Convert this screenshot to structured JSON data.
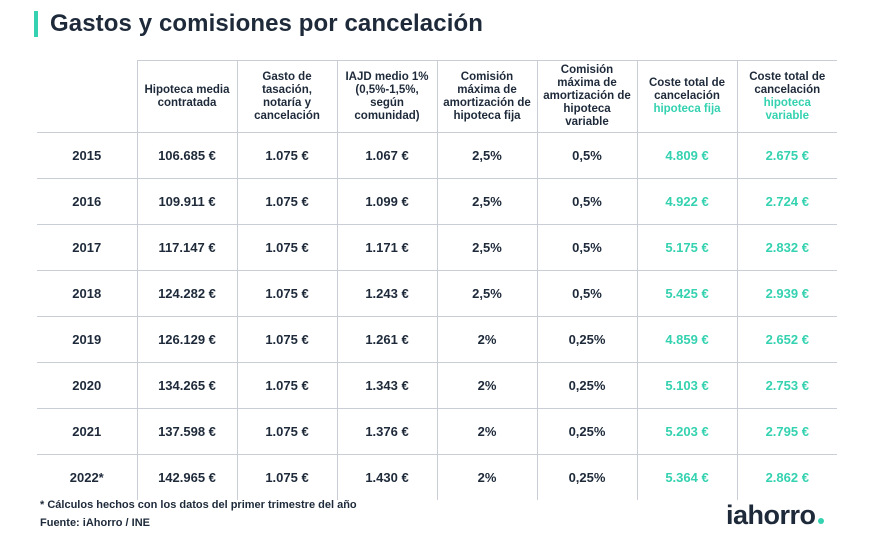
{
  "title": "Gastos y comisiones por cancelación",
  "accent_color": "#34d2b0",
  "text_color": "#1e2a3a",
  "columns": [
    {
      "plain": "Hipoteca media contratada",
      "teal": ""
    },
    {
      "plain": "Gasto de tasación, notaría y cancelación",
      "teal": ""
    },
    {
      "plain": "IAJD medio 1% (0,5%-1,5%, según comunidad)",
      "teal": ""
    },
    {
      "plain": "Comisión máxima de amortización de hipoteca fija",
      "teal": ""
    },
    {
      "plain": "Comisión máxima de amortización de hipoteca variable",
      "teal": ""
    },
    {
      "plain": "Coste total de cancelación",
      "teal": "hipoteca fija"
    },
    {
      "plain": "Coste total de cancelación",
      "teal": "hipoteca variable"
    }
  ],
  "rows": [
    {
      "year": "2015",
      "hipoteca": "106.685 €",
      "gasto": "1.075 €",
      "iajd": "1.067 €",
      "com_fija": "2,5%",
      "com_variable": "0,5%",
      "coste_fija": "4.809 €",
      "coste_variable": "2.675 €"
    },
    {
      "year": "2016",
      "hipoteca": "109.911 €",
      "gasto": "1.075 €",
      "iajd": "1.099 €",
      "com_fija": "2,5%",
      "com_variable": "0,5%",
      "coste_fija": "4.922 €",
      "coste_variable": "2.724 €"
    },
    {
      "year": "2017",
      "hipoteca": "117.147 €",
      "gasto": "1.075 €",
      "iajd": "1.171 €",
      "com_fija": "2,5%",
      "com_variable": "0,5%",
      "coste_fija": "5.175 €",
      "coste_variable": "2.832 €"
    },
    {
      "year": "2018",
      "hipoteca": "124.282 €",
      "gasto": "1.075 €",
      "iajd": "1.243 €",
      "com_fija": "2,5%",
      "com_variable": "0,5%",
      "coste_fija": "5.425 €",
      "coste_variable": "2.939 €"
    },
    {
      "year": "2019",
      "hipoteca": "126.129 €",
      "gasto": "1.075 €",
      "iajd": "1.261 €",
      "com_fija": "2%",
      "com_variable": "0,25%",
      "coste_fija": "4.859 €",
      "coste_variable": "2.652 €"
    },
    {
      "year": "2020",
      "hipoteca": "134.265 €",
      "gasto": "1.075 €",
      "iajd": "1.343 €",
      "com_fija": "2%",
      "com_variable": "0,25%",
      "coste_fija": "5.103 €",
      "coste_variable": "2.753 €"
    },
    {
      "year": "2021",
      "hipoteca": "137.598 €",
      "gasto": "1.075 €",
      "iajd": "1.376 €",
      "com_fija": "2%",
      "com_variable": "0,25%",
      "coste_fija": "5.203 €",
      "coste_variable": "2.795 €"
    },
    {
      "year": "2022*",
      "hipoteca": "142.965 €",
      "gasto": "1.075 €",
      "iajd": "1.430 €",
      "com_fija": "2%",
      "com_variable": "0,25%",
      "coste_fija": "5.364 €",
      "coste_variable": "2.862 €"
    }
  ],
  "footnote": "* Cálculos hechos con los datos del primer trimestre del año",
  "source": "Fuente: iAhorro / INE",
  "logo": "iahorro"
}
